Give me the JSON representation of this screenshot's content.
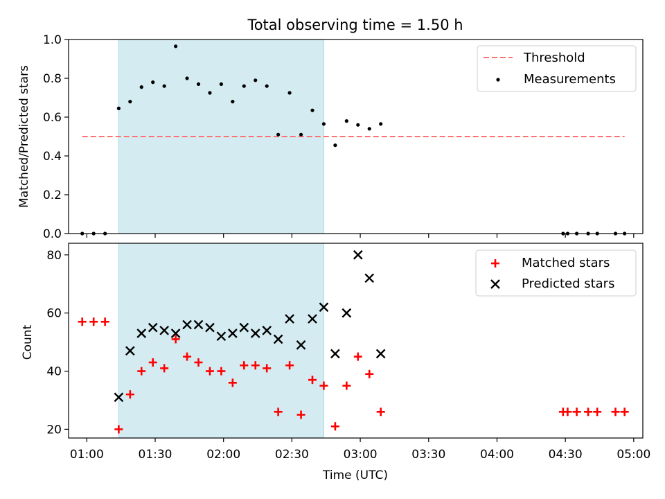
{
  "colors": {
    "threshold": "#ff7070",
    "measurement": "#000000",
    "matched": "#ff0000",
    "predicted": "#000000",
    "shade": "#d4ebf1",
    "shade_edge": "#a8d8e0"
  },
  "chart_data": {
    "type": "scatter",
    "title": "Total observing time = 1.50 h",
    "xlabel": "Time (UTC)",
    "x_ticks": [
      "01:00",
      "01:30",
      "02:00",
      "02:30",
      "03:00",
      "03:30",
      "04:00",
      "04:30",
      "05:00"
    ],
    "xlim": [
      "00:52",
      "05:04"
    ],
    "shaded_interval": [
      "01:14",
      "02:44"
    ],
    "panels": [
      {
        "ylabel": "Matched/Predicted stars",
        "ylim": [
          0,
          1.0
        ],
        "y_ticks": [
          "0.0",
          "0.2",
          "0.4",
          "0.6",
          "0.8",
          "1.0"
        ],
        "legend_position": "top-right",
        "series": [
          {
            "name": "Threshold",
            "style": "dashed-line",
            "points": [
              [
                "00:58",
                0.5
              ],
              [
                "04:56",
                0.5
              ]
            ]
          },
          {
            "name": "Measurements",
            "style": "dot",
            "points": [
              [
                "00:58",
                0.0
              ],
              [
                "01:03",
                0.0
              ],
              [
                "01:08",
                0.0
              ],
              [
                "01:14",
                0.645
              ],
              [
                "01:19",
                0.68
              ],
              [
                "01:24",
                0.755
              ],
              [
                "01:29",
                0.78
              ],
              [
                "01:34",
                0.76
              ],
              [
                "01:39",
                0.965
              ],
              [
                "01:44",
                0.8
              ],
              [
                "01:49",
                0.77
              ],
              [
                "01:54",
                0.725
              ],
              [
                "01:59",
                0.77
              ],
              [
                "02:04",
                0.68
              ],
              [
                "02:09",
                0.76
              ],
              [
                "02:14",
                0.79
              ],
              [
                "02:19",
                0.76
              ],
              [
                "02:24",
                0.51
              ],
              [
                "02:29",
                0.725
              ],
              [
                "02:34",
                0.51
              ],
              [
                "02:39",
                0.635
              ],
              [
                "02:44",
                0.565
              ],
              [
                "02:49",
                0.455
              ],
              [
                "02:54",
                0.58
              ],
              [
                "02:59",
                0.56
              ],
              [
                "03:04",
                0.54
              ],
              [
                "03:09",
                0.565
              ],
              [
                "04:29",
                0.0
              ],
              [
                "04:31",
                0.0
              ],
              [
                "04:35",
                0.0
              ],
              [
                "04:40",
                0.0
              ],
              [
                "04:44",
                0.0
              ],
              [
                "04:52",
                0.0
              ],
              [
                "04:56",
                0.0
              ]
            ]
          }
        ]
      },
      {
        "ylabel": "Count",
        "ylim": [
          17,
          84
        ],
        "y_ticks": [
          "20",
          "40",
          "60",
          "80"
        ],
        "legend_position": "top-right",
        "series": [
          {
            "name": "Matched stars",
            "style": "plus",
            "points": [
              [
                "00:58",
                57
              ],
              [
                "01:03",
                57
              ],
              [
                "01:08",
                57
              ],
              [
                "01:14",
                20
              ],
              [
                "01:19",
                32
              ],
              [
                "01:24",
                40
              ],
              [
                "01:29",
                43
              ],
              [
                "01:34",
                41
              ],
              [
                "01:39",
                51
              ],
              [
                "01:44",
                45
              ],
              [
                "01:49",
                43
              ],
              [
                "01:54",
                40
              ],
              [
                "01:59",
                40
              ],
              [
                "02:04",
                36
              ],
              [
                "02:09",
                42
              ],
              [
                "02:14",
                42
              ],
              [
                "02:19",
                41
              ],
              [
                "02:24",
                26
              ],
              [
                "02:29",
                42
              ],
              [
                "02:34",
                25
              ],
              [
                "02:39",
                37
              ],
              [
                "02:44",
                35
              ],
              [
                "02:49",
                21
              ],
              [
                "02:54",
                35
              ],
              [
                "02:59",
                45
              ],
              [
                "03:04",
                39
              ],
              [
                "03:09",
                26
              ],
              [
                "04:29",
                26
              ],
              [
                "04:31",
                26
              ],
              [
                "04:35",
                26
              ],
              [
                "04:40",
                26
              ],
              [
                "04:44",
                26
              ],
              [
                "04:52",
                26
              ],
              [
                "04:56",
                26
              ]
            ]
          },
          {
            "name": "Predicted stars",
            "style": "x",
            "points": [
              [
                "01:14",
                31
              ],
              [
                "01:19",
                47
              ],
              [
                "01:24",
                53
              ],
              [
                "01:29",
                55
              ],
              [
                "01:34",
                54
              ],
              [
                "01:39",
                53
              ],
              [
                "01:44",
                56
              ],
              [
                "01:49",
                56
              ],
              [
                "01:54",
                55
              ],
              [
                "01:59",
                52
              ],
              [
                "02:04",
                53
              ],
              [
                "02:09",
                55
              ],
              [
                "02:14",
                53
              ],
              [
                "02:19",
                54
              ],
              [
                "02:24",
                51
              ],
              [
                "02:29",
                58
              ],
              [
                "02:34",
                49
              ],
              [
                "02:39",
                58
              ],
              [
                "02:44",
                62
              ],
              [
                "02:49",
                46
              ],
              [
                "02:54",
                60
              ],
              [
                "02:59",
                80
              ],
              [
                "03:04",
                72
              ],
              [
                "03:09",
                46
              ]
            ]
          }
        ]
      }
    ]
  }
}
